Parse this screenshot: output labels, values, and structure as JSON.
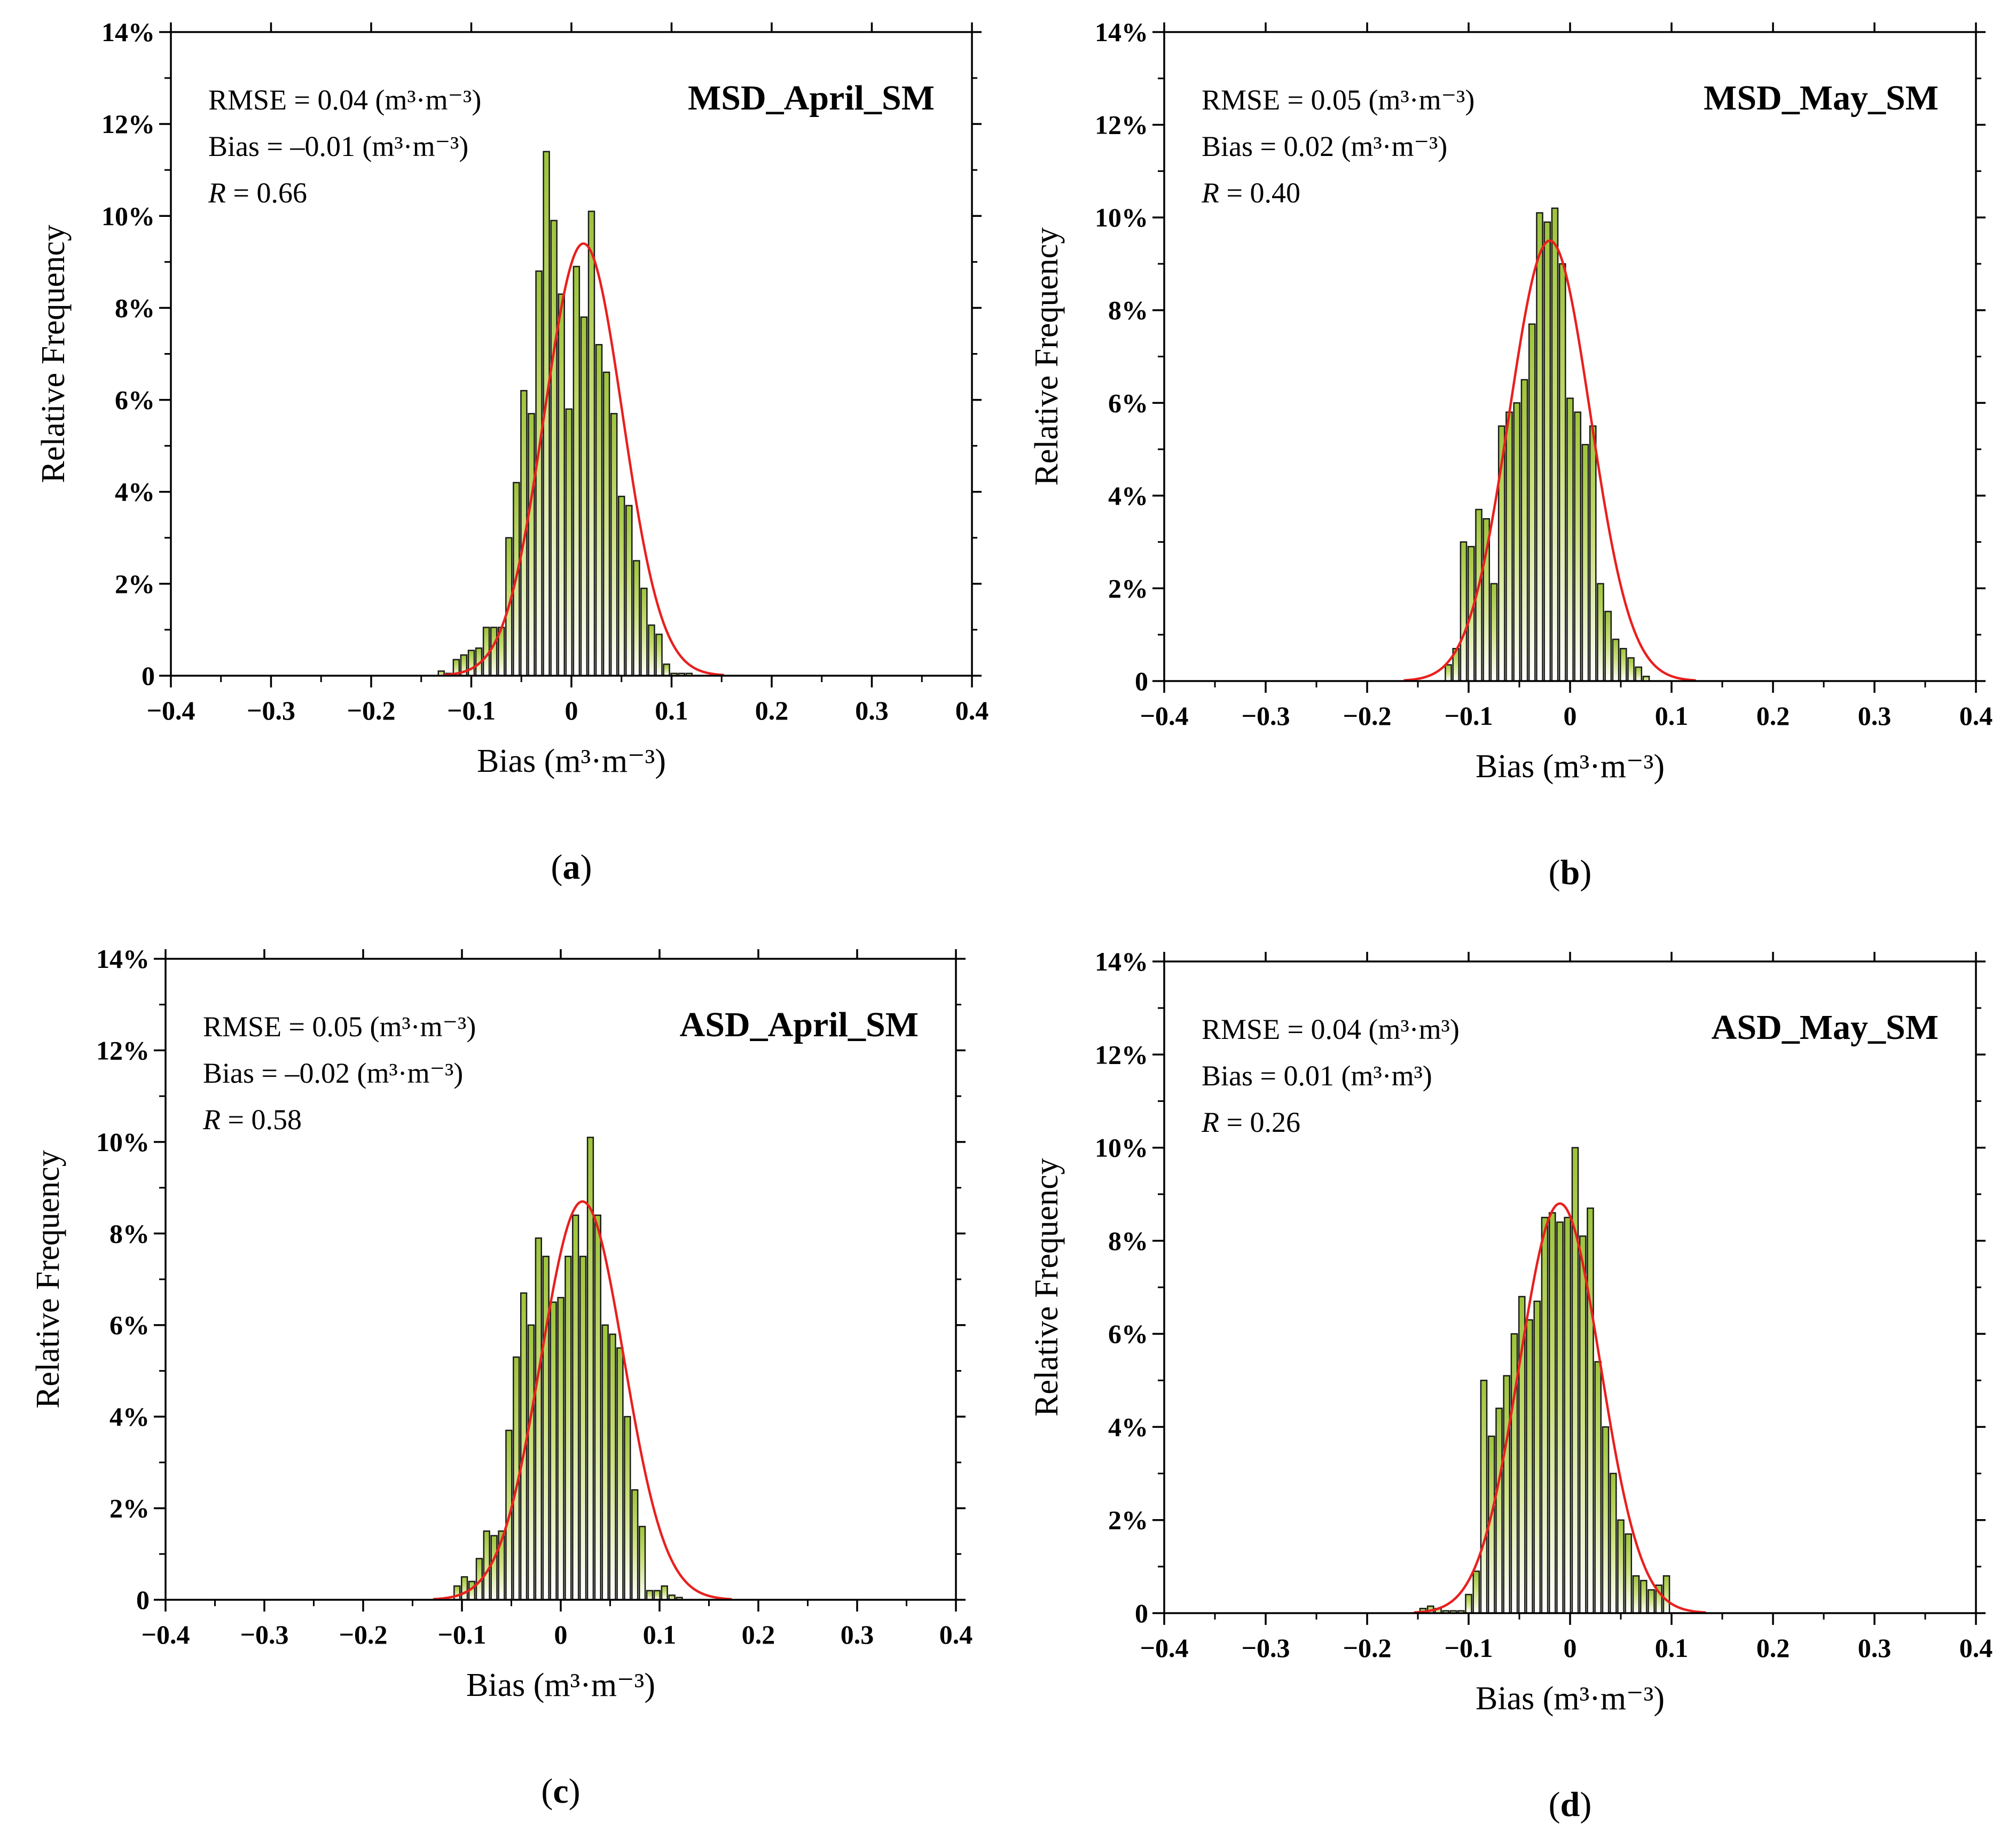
{
  "chart_data": [
    {
      "type": "bar",
      "panel_id": "a",
      "caption_letter": "a",
      "title": "MSD_April_SM",
      "xlabel": "Bias (m³·m⁻³)",
      "ylabel": "Relative Frequency",
      "xlim": [
        -0.4,
        0.4
      ],
      "ylim": [
        0,
        14
      ],
      "x_ticks": [
        "−0.4",
        "−0.3",
        "−0.2",
        "−0.1",
        "0",
        "0.1",
        "0.2",
        "0.3",
        "0.4"
      ],
      "y_ticks": [
        "0",
        "2%",
        "4%",
        "6%",
        "8%",
        "10%",
        "12%",
        "14%"
      ],
      "stats": {
        "rmse": "RMSE = 0.04 (m³·m⁻³)",
        "bias": "Bias = –0.01 (m³·m⁻³)",
        "r_label": "R",
        "r_value": " = 0.66"
      },
      "bin_width": 0.0075,
      "bin_centers": [
        -0.13,
        -0.1225,
        -0.115,
        -0.1075,
        -0.1,
        -0.0925,
        -0.085,
        -0.0775,
        -0.07,
        -0.0625,
        -0.055,
        -0.0475,
        -0.04,
        -0.0325,
        -0.025,
        -0.0175,
        -0.01,
        -0.0025,
        0.005,
        0.0125,
        0.02,
        0.0275,
        0.035,
        0.0425,
        0.05,
        0.0575,
        0.065,
        0.0725,
        0.08,
        0.0875,
        0.095,
        0.1025,
        0.11,
        0.1175
      ],
      "values": [
        0.1,
        0.05,
        0.35,
        0.45,
        0.55,
        0.6,
        1.05,
        1.05,
        1.05,
        3.0,
        4.2,
        6.2,
        5.7,
        8.8,
        11.4,
        9.9,
        8.3,
        5.8,
        8.9,
        7.8,
        10.1,
        7.2,
        6.6,
        5.7,
        3.9,
        3.7,
        2.5,
        1.9,
        1.1,
        0.9,
        0.25,
        0.05,
        0.05,
        0.05
      ],
      "fit": {
        "mean": 0.012,
        "std": 0.039,
        "peak": 9.4
      }
    },
    {
      "type": "bar",
      "panel_id": "b",
      "caption_letter": "b",
      "title": "MSD_May_SM",
      "xlabel": "Bias (m³·m⁻³)",
      "ylabel": "Relative Frequency",
      "xlim": [
        -0.4,
        0.4
      ],
      "ylim": [
        0,
        14
      ],
      "x_ticks": [
        "−0.4",
        "−0.3",
        "−0.2",
        "−0.1",
        "0",
        "0.1",
        "0.2",
        "0.3",
        "0.4"
      ],
      "y_ticks": [
        "0",
        "2%",
        "4%",
        "6%",
        "8%",
        "10%",
        "12%",
        "14%"
      ],
      "stats": {
        "rmse": "RMSE = 0.05 (m³·m⁻³)",
        "bias": "Bias = 0.02 (m³·m⁻³)",
        "r_label": "R",
        "r_value": " = 0.40"
      },
      "bin_width": 0.0075,
      "bin_centers": [
        -0.12,
        -0.1125,
        -0.105,
        -0.0975,
        -0.09,
        -0.0825,
        -0.075,
        -0.0675,
        -0.06,
        -0.0525,
        -0.045,
        -0.0375,
        -0.03,
        -0.0225,
        -0.015,
        -0.0075,
        0.0,
        0.0075,
        0.015,
        0.0225,
        0.03,
        0.0375,
        0.045,
        0.0525,
        0.06,
        0.0675,
        0.075
      ],
      "values": [
        0.35,
        0.7,
        3.0,
        2.9,
        3.7,
        3.5,
        2.1,
        5.5,
        5.8,
        6.0,
        6.5,
        7.7,
        10.1,
        9.9,
        10.2,
        9.0,
        6.1,
        5.8,
        5.1,
        5.5,
        2.1,
        1.5,
        0.9,
        0.7,
        0.5,
        0.3,
        0.1
      ],
      "fit": {
        "mean": -0.02,
        "std": 0.04,
        "peak": 9.5
      }
    },
    {
      "type": "bar",
      "panel_id": "c",
      "caption_letter": "c",
      "title": "ASD_April_SM",
      "xlabel": "Bias (m³·m⁻³)",
      "ylabel": "Relative Frequency",
      "xlim": [
        -0.4,
        0.4
      ],
      "ylim": [
        0,
        14
      ],
      "x_ticks": [
        "−0.4",
        "−0.3",
        "−0.2",
        "−0.1",
        "0",
        "0.1",
        "0.2",
        "0.3",
        "0.4"
      ],
      "y_ticks": [
        "0",
        "2%",
        "4%",
        "6%",
        "8%",
        "10%",
        "12%",
        "14%"
      ],
      "stats": {
        "rmse": "RMSE = 0.05 (m³·m⁻³)",
        "bias": "Bias = –0.02 (m³·m⁻³)",
        "r_label": "R",
        "r_value": " = 0.58"
      },
      "bin_width": 0.0075,
      "bin_centers": [
        -0.105,
        -0.0975,
        -0.09,
        -0.0825,
        -0.075,
        -0.0675,
        -0.06,
        -0.0525,
        -0.045,
        -0.0375,
        -0.03,
        -0.0225,
        -0.015,
        -0.0075,
        0.0,
        0.0075,
        0.015,
        0.0225,
        0.03,
        0.0375,
        0.045,
        0.0525,
        0.06,
        0.0675,
        0.075,
        0.0825,
        0.09,
        0.0975,
        0.105,
        0.1125,
        0.12
      ],
      "values": [
        0.3,
        0.5,
        0.4,
        0.9,
        1.5,
        1.4,
        1.5,
        3.7,
        5.3,
        6.7,
        6.0,
        7.9,
        7.5,
        6.5,
        6.6,
        7.5,
        8.4,
        7.5,
        10.1,
        8.4,
        6.0,
        5.8,
        5.5,
        4.0,
        2.4,
        1.6,
        0.2,
        0.2,
        0.3,
        0.1,
        0.05
      ],
      "fit": {
        "mean": 0.022,
        "std": 0.042,
        "peak": 8.7
      }
    },
    {
      "type": "bar",
      "panel_id": "d",
      "caption_letter": "d",
      "title": "ASD_May_SM",
      "xlabel": "Bias (m³·m⁻³)",
      "ylabel": "Relative Frequency",
      "xlim": [
        -0.4,
        0.4
      ],
      "ylim": [
        0,
        14
      ],
      "x_ticks": [
        "−0.4",
        "−0.3",
        "−0.2",
        "−0.1",
        "0",
        "0.1",
        "0.2",
        "0.3",
        "0.4"
      ],
      "y_ticks": [
        "0",
        "2%",
        "4%",
        "6%",
        "8%",
        "10%",
        "12%",
        "14%"
      ],
      "stats": {
        "rmse": "RMSE = 0.04 (m³·m³)",
        "bias": "Bias = 0.01 (m³·m³)",
        "r_label": "R",
        "r_value": " = 0.26"
      },
      "bin_width": 0.0075,
      "bin_centers": [
        -0.145,
        -0.1375,
        -0.13,
        -0.1225,
        -0.115,
        -0.1075,
        -0.1,
        -0.0925,
        -0.085,
        -0.0775,
        -0.07,
        -0.0625,
        -0.055,
        -0.0475,
        -0.04,
        -0.0325,
        -0.025,
        -0.0175,
        -0.01,
        -0.0025,
        0.005,
        0.0125,
        0.02,
        0.0275,
        0.035,
        0.0425,
        0.05,
        0.0575,
        0.065,
        0.0725,
        0.08,
        0.0875,
        0.095
      ],
      "values": [
        0.1,
        0.15,
        0.1,
        0.05,
        0.05,
        0.05,
        0.4,
        0.9,
        5.0,
        3.8,
        4.4,
        5.1,
        6.0,
        6.8,
        6.3,
        6.7,
        8.5,
        8.6,
        8.4,
        8.5,
        10.0,
        8.1,
        8.7,
        5.4,
        4.0,
        3.0,
        2.0,
        1.7,
        0.8,
        0.7,
        0.5,
        0.6,
        0.8
      ],
      "fit": {
        "mean": -0.01,
        "std": 0.04,
        "peak": 8.8
      }
    }
  ]
}
